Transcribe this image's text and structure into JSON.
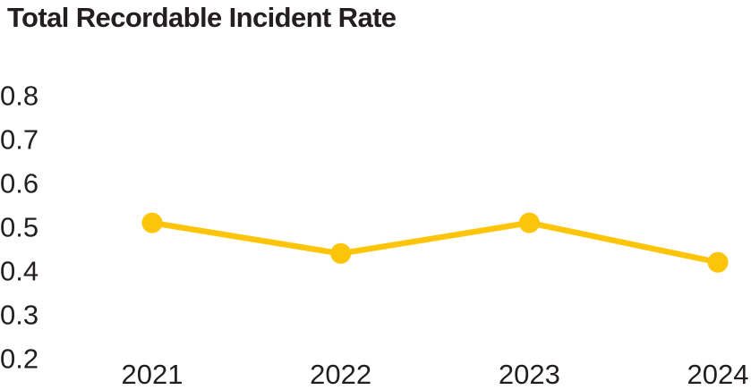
{
  "page": {
    "background_color": "#FFFFFF",
    "text_color": "#231F20"
  },
  "chart_data": {
    "type": "line",
    "title": "Total Recordable Incident Rate",
    "categories": [
      "2021",
      "2022",
      "2023",
      "2024"
    ],
    "values": [
      0.51,
      0.44,
      0.51,
      0.42
    ],
    "xlabel": "",
    "ylabel": "",
    "yticks": [
      0.8,
      0.7,
      0.6,
      0.5,
      0.4,
      0.3,
      0.2
    ],
    "ylim": [
      0.2,
      0.8
    ],
    "grid": false,
    "legend_position": "none",
    "axis_lines": "none",
    "line_color": "#FDC50A",
    "marker": "filled-circle",
    "title_color": "#231F20",
    "tick_label_color": "#231F20"
  }
}
